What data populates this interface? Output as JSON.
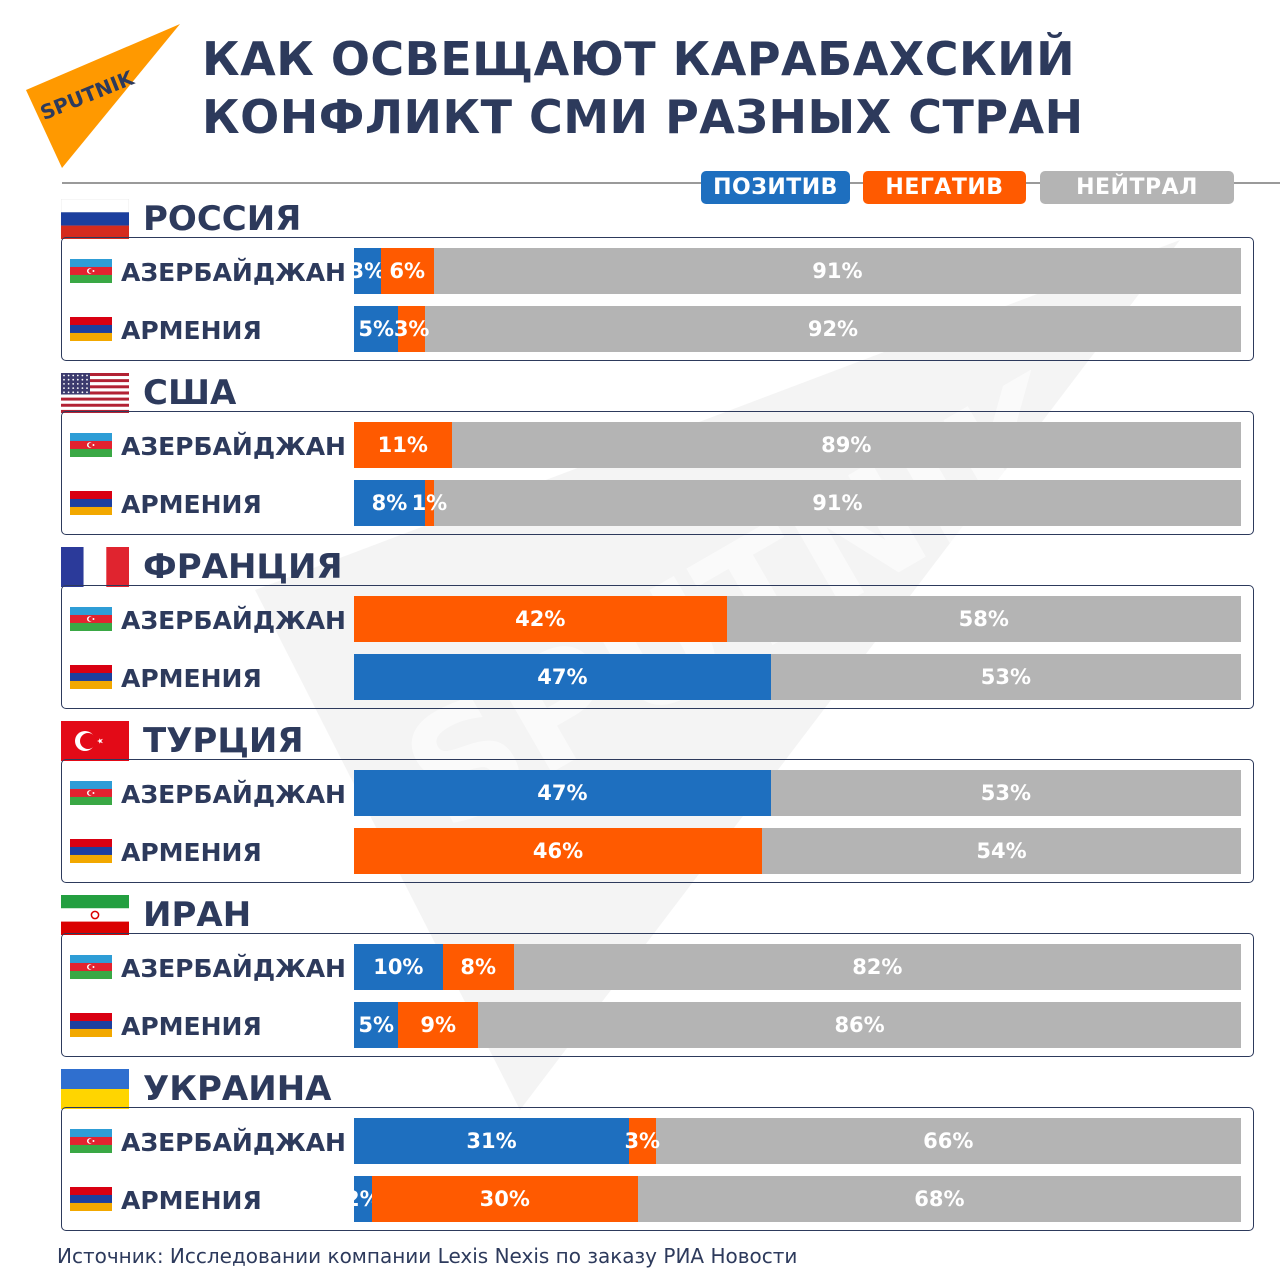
{
  "logo": {
    "text": "SPUTNIK",
    "icon": "sputnik-logo-icon",
    "color": "#ff9900"
  },
  "title": {
    "line1": "КАК ОСВЕЩАЮТ КАРАБАХСКИЙ",
    "line2": "КОНФЛИКТ СМИ РАЗНЫХ СТРАН"
  },
  "colors": {
    "positive": "#1e6fbf",
    "negative": "#ff5a00",
    "neutral": "#b4b4b4",
    "text": "#2d3a5c"
  },
  "legend": {
    "positive": "ПОЗИТИВ",
    "negative": "НЕГАТИВ",
    "neutral": "НЕЙТРАЛ"
  },
  "source": "Источник: Исследовании компании Lexis Nexis по заказу РИА Новости",
  "chart_data": {
    "type": "bar",
    "stacked": true,
    "orientation": "horizontal",
    "title": "КАК ОСВЕЩАЮТ КАРАБАХСКИЙ КОНФЛИКТ СМИ РАЗНЫХ СТРАН",
    "unit": "%",
    "xlim": [
      0,
      100
    ],
    "legend_position": "top-right",
    "series_names": [
      "ПОЗИТИВ",
      "НЕГАТИВ",
      "НЕЙТРАЛ"
    ],
    "groups": [
      {
        "country": "РОССИЯ",
        "flag": "russia-flag-icon",
        "rows": [
          {
            "label": "АЗЕРБАЙДЖАН",
            "flag": "azerbaijan-flag-icon",
            "positive": 3,
            "negative": 6,
            "neutral": 91
          },
          {
            "label": "АРМЕНИЯ",
            "flag": "armenia-flag-icon",
            "positive": 5,
            "negative": 3,
            "neutral": 92
          }
        ]
      },
      {
        "country": "США",
        "flag": "usa-flag-icon",
        "rows": [
          {
            "label": "АЗЕРБАЙДЖАН",
            "flag": "azerbaijan-flag-icon",
            "positive": 0,
            "negative": 11,
            "neutral": 89
          },
          {
            "label": "АРМЕНИЯ",
            "flag": "armenia-flag-icon",
            "positive": 8,
            "negative": 1,
            "neutral": 91
          }
        ]
      },
      {
        "country": "ФРАНЦИЯ",
        "flag": "france-flag-icon",
        "rows": [
          {
            "label": "АЗЕРБАЙДЖАН",
            "flag": "azerbaijan-flag-icon",
            "positive": 0,
            "negative": 42,
            "neutral": 58
          },
          {
            "label": "АРМЕНИЯ",
            "flag": "armenia-flag-icon",
            "positive": 47,
            "negative": 0,
            "neutral": 53
          }
        ]
      },
      {
        "country": "ТУРЦИЯ",
        "flag": "turkey-flag-icon",
        "rows": [
          {
            "label": "АЗЕРБАЙДЖАН",
            "flag": "azerbaijan-flag-icon",
            "positive": 47,
            "negative": 0,
            "neutral": 53
          },
          {
            "label": "АРМЕНИЯ",
            "flag": "armenia-flag-icon",
            "positive": 0,
            "negative": 46,
            "neutral": 54
          }
        ]
      },
      {
        "country": "ИРАН",
        "flag": "iran-flag-icon",
        "rows": [
          {
            "label": "АЗЕРБАЙДЖАН",
            "flag": "azerbaijan-flag-icon",
            "positive": 10,
            "negative": 8,
            "neutral": 82
          },
          {
            "label": "АРМЕНИЯ",
            "flag": "armenia-flag-icon",
            "positive": 5,
            "negative": 9,
            "neutral": 86
          }
        ]
      },
      {
        "country": "УКРАИНА",
        "flag": "ukraine-flag-icon",
        "rows": [
          {
            "label": "АЗЕРБАЙДЖАН",
            "flag": "azerbaijan-flag-icon",
            "positive": 31,
            "negative": 3,
            "neutral": 66
          },
          {
            "label": "АРМЕНИЯ",
            "flag": "armenia-flag-icon",
            "positive": 2,
            "negative": 30,
            "neutral": 68
          }
        ]
      }
    ]
  }
}
